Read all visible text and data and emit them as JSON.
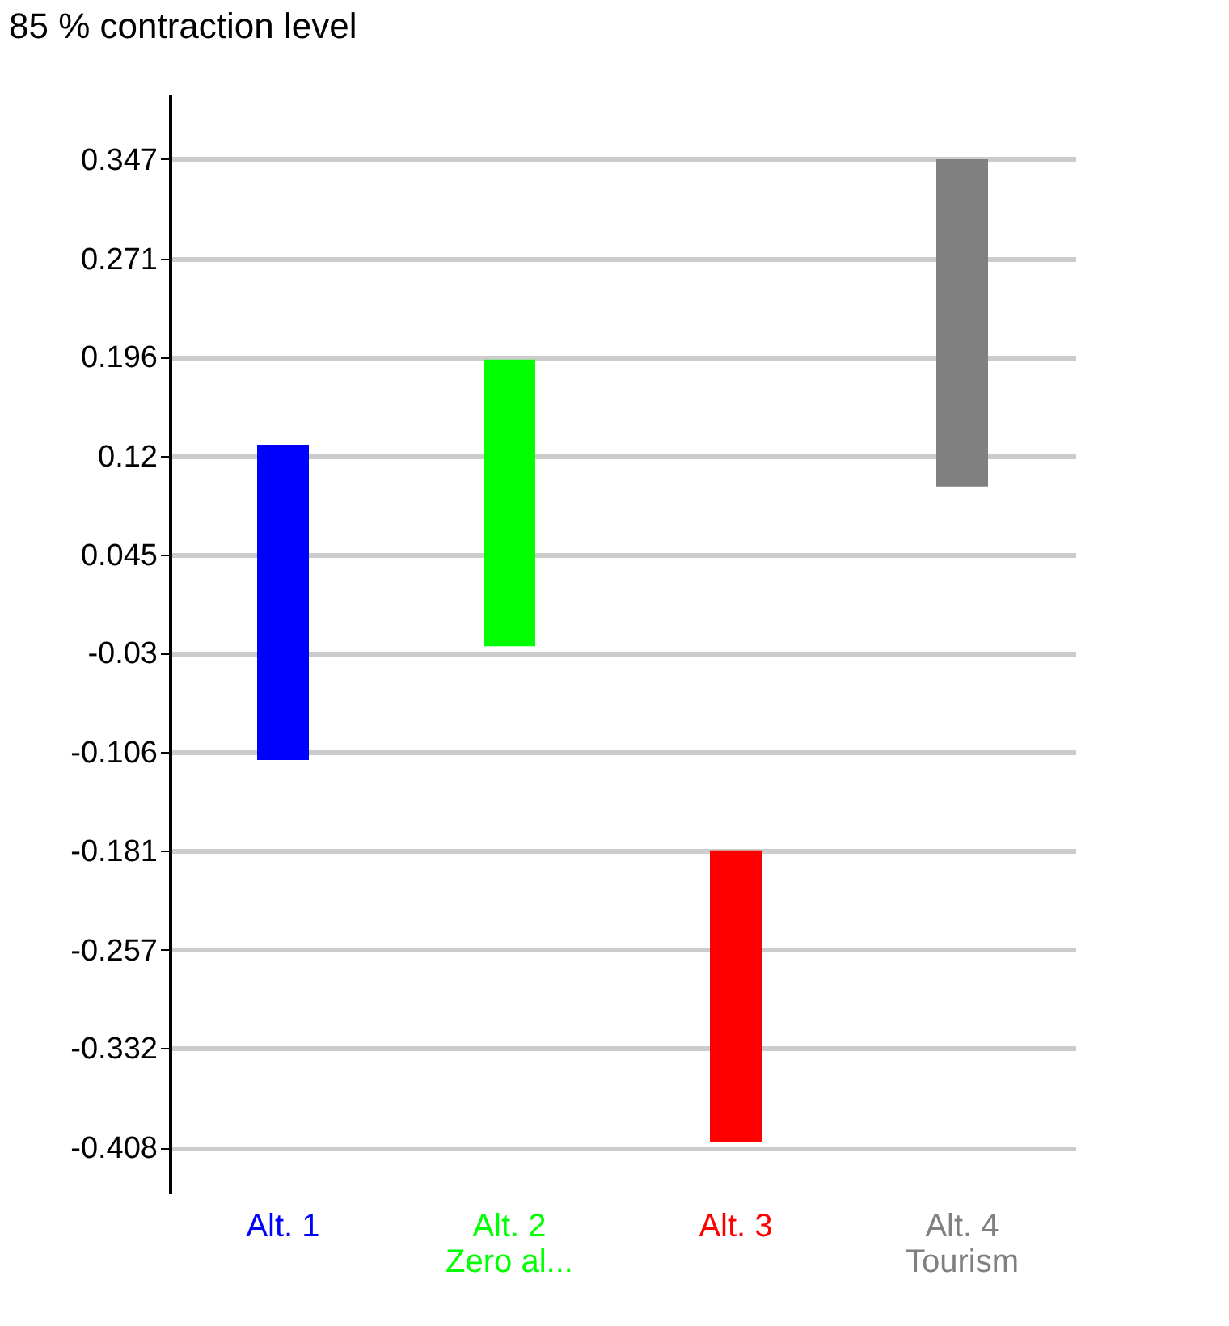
{
  "chart_data": {
    "type": "bar",
    "ylabel": "85 % contraction level",
    "categories": [
      "Alt. 1",
      "Alt. 2\nZero al...",
      "Alt. 3",
      "Alt. 4\nTourism"
    ],
    "base": [
      -0.112,
      -0.025,
      -0.404,
      0.097
    ],
    "values": [
      0.241,
      0.219,
      0.223,
      0.25
    ],
    "colors": [
      "#0000ff",
      "#00ff00",
      "#ff0000",
      "#808080"
    ],
    "ylim": [
      -0.443,
      0.397
    ],
    "yticks": [
      0.347,
      0.271,
      0.196,
      0.12,
      0.045,
      -0.03,
      -0.106,
      -0.181,
      -0.257,
      -0.332,
      -0.408
    ],
    "grid": "y"
  }
}
